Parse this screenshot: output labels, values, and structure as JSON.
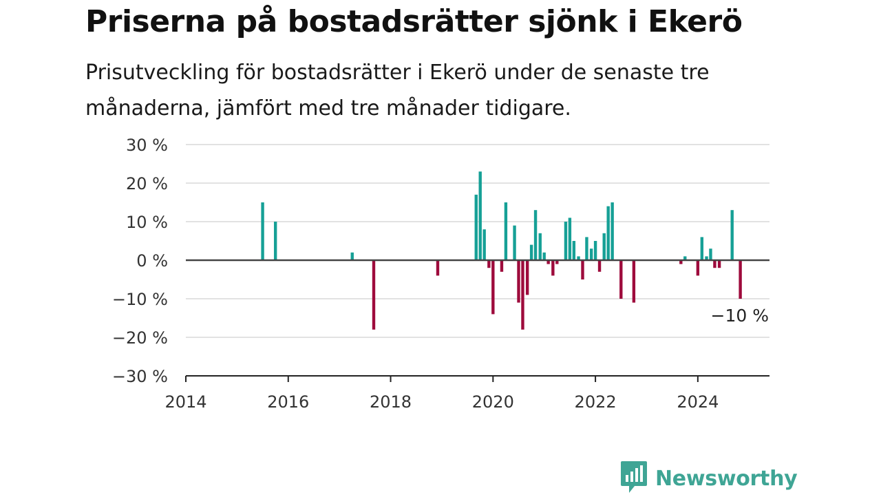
{
  "header": {
    "title": "Priserna på bostadsrätter sjönk i Ekerö",
    "subtitle": "Prisutveckling för bostadsrätter i Ekerö under de senaste tre månaderna, jämfört med tre månader tidigare."
  },
  "brand": {
    "name": "Newsworthy",
    "icon": "newsworthy-logo-icon",
    "color": "#3fa595"
  },
  "colors": {
    "positive": "#16a096",
    "negative": "#9e0b3c",
    "grid": "#d9d9d9",
    "zero": "#444444"
  },
  "chart_data": {
    "type": "bar",
    "title": "Priserna på bostadsrätter sjönk i Ekerö",
    "subtitle": "Prisutveckling för bostadsrätter i Ekerö under de senaste tre månaderna, jämfört med tre månader tidigare.",
    "xlabel": "",
    "ylabel": "",
    "xlim": [
      2014,
      2025.4
    ],
    "ylim": [
      -30,
      30
    ],
    "grid": true,
    "legend": "none",
    "x_ticks": [
      {
        "value": 2014,
        "label": "2014"
      },
      {
        "value": 2016,
        "label": "2016"
      },
      {
        "value": 2018,
        "label": "2018"
      },
      {
        "value": 2020,
        "label": "2020"
      },
      {
        "value": 2022,
        "label": "2022"
      },
      {
        "value": 2024,
        "label": "2024"
      }
    ],
    "y_ticks": [
      {
        "value": 30,
        "label": "30 %"
      },
      {
        "value": 20,
        "label": "20 %"
      },
      {
        "value": 10,
        "label": "10 %"
      },
      {
        "value": 0,
        "label": "0 %"
      },
      {
        "value": -10,
        "label": "−10 %"
      },
      {
        "value": -20,
        "label": "−20 %"
      },
      {
        "value": -30,
        "label": "−30 %"
      }
    ],
    "annotation": {
      "text": "−10 %",
      "x": 2024.83,
      "y": -10
    },
    "series": [
      {
        "points": [
          {
            "x": 2015.5,
            "y": 15
          },
          {
            "x": 2015.75,
            "y": 10
          },
          {
            "x": 2017.25,
            "y": 2
          },
          {
            "x": 2017.67,
            "y": -18
          },
          {
            "x": 2018.92,
            "y": -4
          },
          {
            "x": 2019.67,
            "y": 17
          },
          {
            "x": 2019.75,
            "y": 23
          },
          {
            "x": 2019.83,
            "y": 8
          },
          {
            "x": 2019.92,
            "y": -2
          },
          {
            "x": 2020.0,
            "y": -14
          },
          {
            "x": 2020.17,
            "y": -3
          },
          {
            "x": 2020.25,
            "y": 15
          },
          {
            "x": 2020.42,
            "y": 9
          },
          {
            "x": 2020.5,
            "y": -11
          },
          {
            "x": 2020.58,
            "y": -18
          },
          {
            "x": 2020.67,
            "y": -9
          },
          {
            "x": 2020.75,
            "y": 4
          },
          {
            "x": 2020.83,
            "y": 13
          },
          {
            "x": 2020.92,
            "y": 7
          },
          {
            "x": 2021.0,
            "y": 2
          },
          {
            "x": 2021.08,
            "y": -1
          },
          {
            "x": 2021.17,
            "y": -4
          },
          {
            "x": 2021.25,
            "y": -1
          },
          {
            "x": 2021.42,
            "y": 10
          },
          {
            "x": 2021.5,
            "y": 11
          },
          {
            "x": 2021.58,
            "y": 5
          },
          {
            "x": 2021.67,
            "y": 1
          },
          {
            "x": 2021.75,
            "y": -5
          },
          {
            "x": 2021.83,
            "y": 6
          },
          {
            "x": 2021.92,
            "y": 3
          },
          {
            "x": 2022.0,
            "y": 5
          },
          {
            "x": 2022.08,
            "y": -3
          },
          {
            "x": 2022.17,
            "y": 7
          },
          {
            "x": 2022.25,
            "y": 14
          },
          {
            "x": 2022.33,
            "y": 15
          },
          {
            "x": 2022.5,
            "y": -10
          },
          {
            "x": 2022.75,
            "y": -11
          },
          {
            "x": 2023.67,
            "y": -1
          },
          {
            "x": 2023.75,
            "y": 1
          },
          {
            "x": 2024.0,
            "y": -4
          },
          {
            "x": 2024.08,
            "y": 6
          },
          {
            "x": 2024.17,
            "y": 1
          },
          {
            "x": 2024.25,
            "y": 3
          },
          {
            "x": 2024.33,
            "y": -2
          },
          {
            "x": 2024.42,
            "y": -2
          },
          {
            "x": 2024.67,
            "y": 13
          },
          {
            "x": 2024.83,
            "y": -10
          }
        ]
      }
    ]
  }
}
